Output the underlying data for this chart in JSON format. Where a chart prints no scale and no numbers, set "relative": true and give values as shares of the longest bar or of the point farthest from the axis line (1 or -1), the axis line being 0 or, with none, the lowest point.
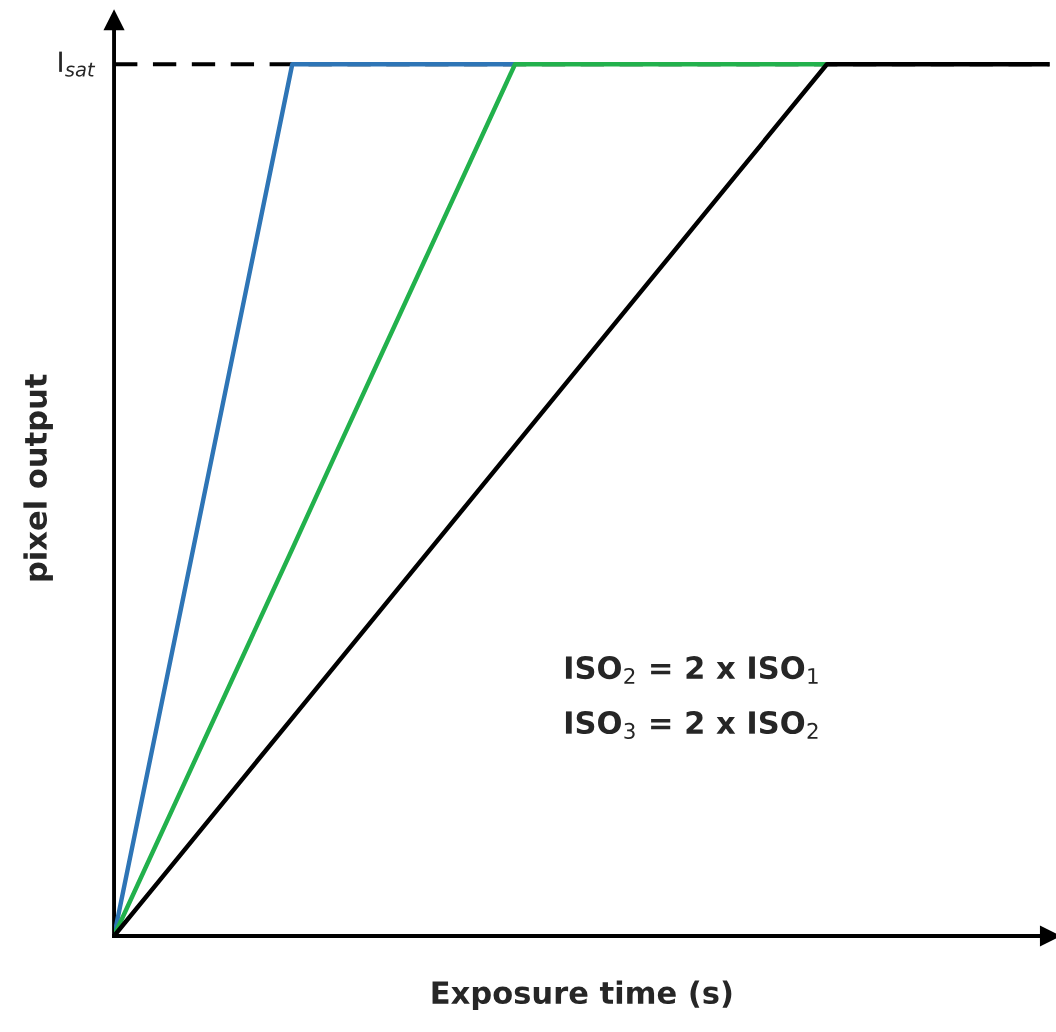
{
  "chart_data": {
    "type": "line",
    "relative": true,
    "xlabel": "Exposure time (s)",
    "ylabel": "pixel output",
    "categories": [
      null,
      null,
      null,
      null,
      null,
      null,
      null,
      null,
      null,
      null,
      null,
      null,
      null,
      null,
      null,
      null,
      null,
      null,
      null,
      null,
      null,
      null
    ],
    "series": [
      {
        "color": "#2e75b6",
        "values": [
          0,
          0.25,
          0.5,
          0.75,
          1,
          1,
          1,
          1,
          1,
          1,
          null,
          null,
          null,
          null,
          null,
          null,
          null,
          null,
          null,
          null,
          null,
          null
        ]
      },
      {
        "color": "#22b14c",
        "values": [
          0,
          0.111,
          0.222,
          0.333,
          0.444,
          0.556,
          0.667,
          0.778,
          0.889,
          1,
          1,
          1,
          1,
          1,
          1,
          1,
          1,
          null,
          null,
          null,
          null,
          null
        ]
      },
      {
        "color": "#000000",
        "values": [
          0,
          0.0625,
          0.125,
          0.1875,
          0.25,
          0.3125,
          0.375,
          0.4375,
          0.5,
          0.5625,
          0.625,
          0.6875,
          0.75,
          0.8125,
          0.875,
          0.9375,
          1,
          1,
          1,
          1,
          1,
          1
        ]
      }
    ],
    "ref_lines": [
      {
        "axis": "y",
        "value": 1,
        "label": "I$_{sat}$",
        "color": "#000000",
        "line_style": "dashed"
      }
    ],
    "annotations": [
      "ISO$_{2}$ = 2 x ISO$_{1}$",
      "ISO$_{3}$ = 2 x ISO$_{2}$"
    ],
    "legend": false,
    "marker": "none",
    "line_style": "solid"
  }
}
